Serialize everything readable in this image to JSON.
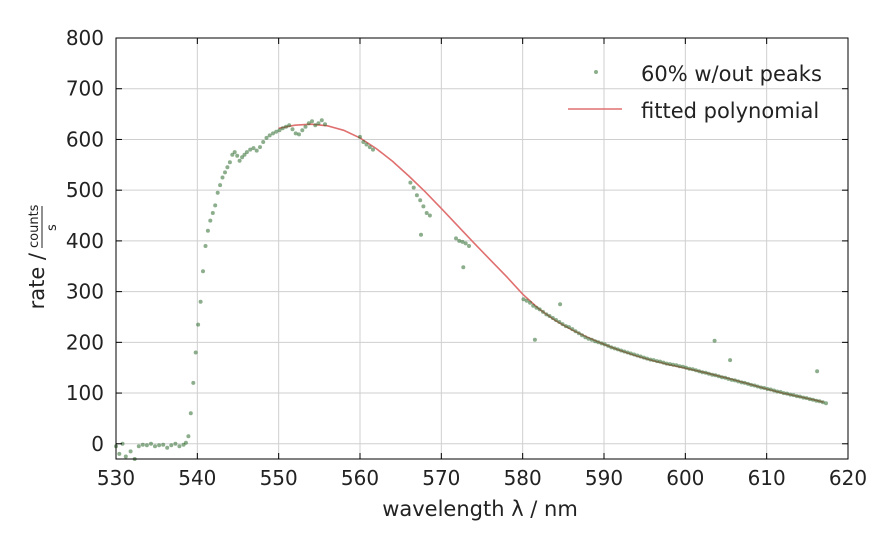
{
  "chart_data": {
    "type": "scatter",
    "title": "",
    "xlabel": "wavelength λ / nm",
    "ylabel_prefix": "rate /",
    "ylabel_numerator": "counts",
    "ylabel_denominator": "s",
    "xlim": [
      530,
      620
    ],
    "ylim": [
      -30,
      800
    ],
    "xticks": [
      530,
      540,
      550,
      560,
      570,
      580,
      590,
      600,
      610,
      620
    ],
    "yticks": [
      0,
      100,
      200,
      300,
      400,
      500,
      600,
      700,
      800
    ],
    "grid": true,
    "legend_position": "top-right",
    "series": [
      {
        "name": "60% w/out peaks",
        "kind": "scatter",
        "color": "#2e6b2e",
        "points": [
          [
            530.0,
            -5
          ],
          [
            530.4,
            -20
          ],
          [
            530.8,
            0
          ],
          [
            531.2,
            -25
          ],
          [
            531.8,
            -15
          ],
          [
            532.3,
            -30
          ],
          [
            532.8,
            -5
          ],
          [
            533.3,
            -2
          ],
          [
            533.8,
            -3
          ],
          [
            534.3,
            0
          ],
          [
            534.8,
            -5
          ],
          [
            535.3,
            -3
          ],
          [
            535.8,
            -2
          ],
          [
            536.3,
            -8
          ],
          [
            536.8,
            -3
          ],
          [
            537.3,
            0
          ],
          [
            537.8,
            -5
          ],
          [
            538.3,
            -2
          ],
          [
            538.6,
            2
          ],
          [
            538.9,
            15
          ],
          [
            539.2,
            60
          ],
          [
            539.5,
            120
          ],
          [
            539.8,
            180
          ],
          [
            540.1,
            235
          ],
          [
            540.4,
            280
          ],
          [
            540.7,
            340
          ],
          [
            541.0,
            390
          ],
          [
            541.3,
            420
          ],
          [
            541.6,
            440
          ],
          [
            541.9,
            455
          ],
          [
            542.2,
            470
          ],
          [
            542.5,
            495
          ],
          [
            542.8,
            510
          ],
          [
            543.1,
            525
          ],
          [
            543.4,
            535
          ],
          [
            543.7,
            545
          ],
          [
            544.0,
            555
          ],
          [
            544.3,
            570
          ],
          [
            544.6,
            575
          ],
          [
            544.9,
            568
          ],
          [
            545.2,
            558
          ],
          [
            545.5,
            565
          ],
          [
            545.8,
            570
          ],
          [
            546.1,
            575
          ],
          [
            546.5,
            580
          ],
          [
            546.9,
            583
          ],
          [
            547.3,
            578
          ],
          [
            547.7,
            585
          ],
          [
            548.1,
            595
          ],
          [
            548.5,
            603
          ],
          [
            548.9,
            608
          ],
          [
            549.3,
            612
          ],
          [
            549.7,
            615
          ],
          [
            550.1,
            618
          ],
          [
            550.5,
            622
          ],
          [
            550.9,
            625
          ],
          [
            551.3,
            628
          ],
          [
            551.7,
            620
          ],
          [
            552.1,
            612
          ],
          [
            552.5,
            610
          ],
          [
            552.9,
            618
          ],
          [
            553.3,
            625
          ],
          [
            553.7,
            632
          ],
          [
            554.1,
            636
          ],
          [
            554.5,
            628
          ],
          [
            554.9,
            632
          ],
          [
            555.3,
            638
          ],
          [
            555.7,
            630
          ],
          [
            560.0,
            605
          ],
          [
            560.4,
            595
          ],
          [
            560.8,
            590
          ],
          [
            561.2,
            585
          ],
          [
            561.6,
            580
          ],
          [
            566.2,
            515
          ],
          [
            566.6,
            505
          ],
          [
            567.0,
            490
          ],
          [
            567.4,
            480
          ],
          [
            567.8,
            468
          ],
          [
            568.2,
            455
          ],
          [
            568.6,
            450
          ],
          [
            567.5,
            412
          ],
          [
            571.8,
            405
          ],
          [
            572.2,
            400
          ],
          [
            572.6,
            398
          ],
          [
            573.0,
            395
          ],
          [
            573.4,
            390
          ],
          [
            572.7,
            348
          ],
          [
            580.1,
            285
          ],
          [
            580.5,
            282
          ],
          [
            580.9,
            278
          ],
          [
            581.3,
            272
          ],
          [
            581.7,
            268
          ],
          [
            581.5,
            205
          ],
          [
            582.1,
            265
          ],
          [
            582.5,
            260
          ],
          [
            582.9,
            255
          ],
          [
            583.3,
            252
          ],
          [
            583.7,
            248
          ],
          [
            584.1,
            244
          ],
          [
            584.5,
            240
          ],
          [
            584.9,
            236
          ],
          [
            585.3,
            232
          ],
          [
            585.7,
            230
          ],
          [
            584.6,
            275
          ],
          [
            586.1,
            226
          ],
          [
            586.5,
            222
          ],
          [
            586.9,
            218
          ],
          [
            587.3,
            214
          ],
          [
            587.7,
            210
          ],
          [
            588.1,
            207
          ],
          [
            588.5,
            205
          ],
          [
            588.9,
            202
          ],
          [
            589.3,
            200
          ],
          [
            589.7,
            198
          ],
          [
            590.1,
            196
          ],
          [
            590.5,
            193
          ],
          [
            590.9,
            190
          ],
          [
            591.3,
            188
          ],
          [
            591.7,
            186
          ],
          [
            592.1,
            184
          ],
          [
            592.5,
            182
          ],
          [
            592.9,
            180
          ],
          [
            593.3,
            178
          ],
          [
            593.7,
            176
          ],
          [
            594.1,
            174
          ],
          [
            594.5,
            172
          ],
          [
            594.9,
            170
          ],
          [
            595.3,
            168
          ],
          [
            595.7,
            166
          ],
          [
            596.1,
            165
          ],
          [
            596.5,
            163
          ],
          [
            596.9,
            162
          ],
          [
            597.3,
            160
          ],
          [
            597.7,
            158
          ],
          [
            598.1,
            157
          ],
          [
            598.5,
            156
          ],
          [
            598.9,
            155
          ],
          [
            599.3,
            153
          ],
          [
            599.7,
            152
          ],
          [
            600.1,
            150
          ],
          [
            600.5,
            148
          ],
          [
            600.9,
            147
          ],
          [
            601.3,
            145
          ],
          [
            601.7,
            143
          ],
          [
            602.1,
            141
          ],
          [
            602.5,
            140
          ],
          [
            602.9,
            138
          ],
          [
            603.3,
            136
          ],
          [
            603.7,
            135
          ],
          [
            603.6,
            203
          ],
          [
            604.1,
            133
          ],
          [
            604.5,
            131
          ],
          [
            604.9,
            130
          ],
          [
            605.3,
            128
          ],
          [
            605.7,
            126
          ],
          [
            605.5,
            165
          ],
          [
            606.1,
            125
          ],
          [
            606.5,
            123
          ],
          [
            606.9,
            121
          ],
          [
            607.3,
            120
          ],
          [
            607.7,
            118
          ],
          [
            608.1,
            116
          ],
          [
            608.5,
            115
          ],
          [
            608.9,
            113
          ],
          [
            609.3,
            111
          ],
          [
            609.7,
            110
          ],
          [
            610.1,
            108
          ],
          [
            610.5,
            107
          ],
          [
            610.9,
            105
          ],
          [
            611.3,
            103
          ],
          [
            611.7,
            102
          ],
          [
            612.1,
            100
          ],
          [
            612.5,
            99
          ],
          [
            612.9,
            97
          ],
          [
            613.3,
            96
          ],
          [
            613.7,
            94
          ],
          [
            614.1,
            93
          ],
          [
            614.5,
            91
          ],
          [
            614.9,
            90
          ],
          [
            615.3,
            88
          ],
          [
            615.7,
            87
          ],
          [
            616.1,
            85
          ],
          [
            616.5,
            84
          ],
          [
            616.9,
            82
          ],
          [
            617.3,
            80
          ],
          [
            616.2,
            143
          ]
        ]
      },
      {
        "name": "fitted polynomial",
        "kind": "line",
        "color": "#e07070",
        "points": [
          [
            550.0,
            622
          ],
          [
            552.0,
            628
          ],
          [
            554.0,
            630
          ],
          [
            556.0,
            627
          ],
          [
            558.0,
            618
          ],
          [
            560.0,
            603
          ],
          [
            562.0,
            582
          ],
          [
            564.0,
            557
          ],
          [
            566.0,
            528
          ],
          [
            568.0,
            497
          ],
          [
            570.0,
            464
          ],
          [
            572.0,
            430
          ],
          [
            574.0,
            396
          ],
          [
            576.0,
            363
          ],
          [
            578.0,
            330
          ],
          [
            580.0,
            295
          ],
          [
            582.0,
            266
          ],
          [
            584.0,
            243
          ],
          [
            586.0,
            225
          ],
          [
            588.0,
            210
          ],
          [
            590.0,
            196
          ],
          [
            592.0,
            184
          ],
          [
            594.0,
            173
          ],
          [
            596.0,
            164
          ],
          [
            598.0,
            156
          ],
          [
            600.0,
            149
          ],
          [
            602.0,
            142
          ],
          [
            604.0,
            134
          ],
          [
            606.0,
            126
          ],
          [
            608.0,
            117
          ],
          [
            610.0,
            108
          ],
          [
            612.0,
            100
          ],
          [
            614.0,
            93
          ],
          [
            616.0,
            86
          ],
          [
            617.0,
            82
          ]
        ]
      }
    ]
  }
}
